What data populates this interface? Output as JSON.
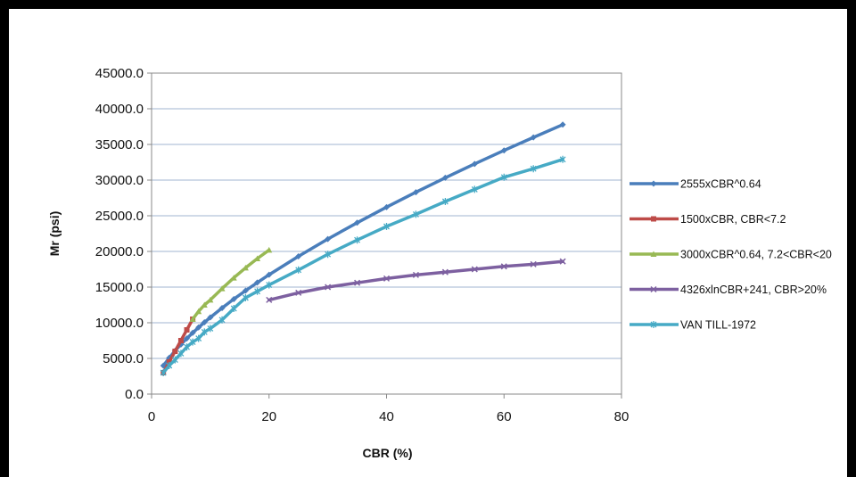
{
  "chart_data": {
    "type": "line",
    "title": "",
    "xlabel": "CBR (%)",
    "ylabel": "Mr (psi)",
    "xlim": [
      0,
      80
    ],
    "ylim": [
      0,
      45000
    ],
    "x_ticks": [
      0,
      20,
      40,
      60,
      80
    ],
    "y_ticks": [
      0,
      5000,
      10000,
      15000,
      20000,
      25000,
      30000,
      35000,
      40000,
      45000
    ],
    "x_tick_labels": [
      "0",
      "20",
      "40",
      "60",
      "80"
    ],
    "y_tick_labels": [
      "0.0",
      "5000.0",
      "10000.0",
      "15000.0",
      "20000.0",
      "25000.0",
      "30000.0",
      "35000.0",
      "40000.0",
      "45000.0"
    ],
    "grid": "horizontal",
    "legend_position": "right",
    "series": [
      {
        "name": "2555xCBR^0.64",
        "color": "#4a7ebb",
        "marker": "diamond",
        "x": [
          2,
          3,
          4,
          5,
          6,
          7,
          8,
          9,
          10,
          12,
          14,
          16,
          18,
          20,
          25,
          30,
          35,
          40,
          45,
          50,
          55,
          60,
          65,
          70
        ],
        "y": [
          3980,
          5080,
          6060,
          6960,
          7800,
          8590,
          9340,
          10060,
          10750,
          12070,
          13320,
          14500,
          15640,
          16740,
          19310,
          21740,
          24030,
          26210,
          28300,
          30330,
          32270,
          34160,
          35990,
          37780
        ]
      },
      {
        "name": "1500xCBR, CBR<7.2",
        "color": "#be4b48",
        "marker": "square",
        "x": [
          2,
          3,
          4,
          5,
          6,
          7
        ],
        "y": [
          3000,
          4500,
          6000,
          7500,
          9000,
          10500
        ]
      },
      {
        "name": "3000xCBR^0.64, 7.2<CBR<20",
        "color": "#98b954",
        "marker": "triangle",
        "x": [
          7,
          8,
          9,
          10,
          12,
          14,
          16,
          18,
          20
        ],
        "y": [
          10500,
          11600,
          12500,
          13200,
          14800,
          16300,
          17700,
          19000,
          20200
        ]
      },
      {
        "name": "4326xlnCBR+241, CBR>20%",
        "color": "#7d60a0",
        "marker": "x",
        "x": [
          20,
          25,
          30,
          35,
          40,
          45,
          50,
          55,
          60,
          65,
          70
        ],
        "y": [
          13200,
          14200,
          15000,
          15600,
          16200,
          16700,
          17100,
          17500,
          17900,
          18200,
          18600
        ]
      },
      {
        "name": "VAN TILL-1972",
        "color": "#46aac5",
        "marker": "star",
        "x": [
          2,
          3,
          4,
          5,
          6,
          7,
          8,
          9,
          10,
          12,
          14,
          16,
          18,
          20,
          25,
          30,
          35,
          40,
          45,
          50,
          55,
          60,
          65,
          70
        ],
        "y": [
          3000,
          4000,
          4800,
          5700,
          6600,
          7300,
          7800,
          8700,
          9200,
          10400,
          12000,
          13500,
          14400,
          15300,
          17400,
          19600,
          21600,
          23500,
          25200,
          27000,
          28700,
          30400,
          31600,
          32900
        ]
      }
    ]
  }
}
